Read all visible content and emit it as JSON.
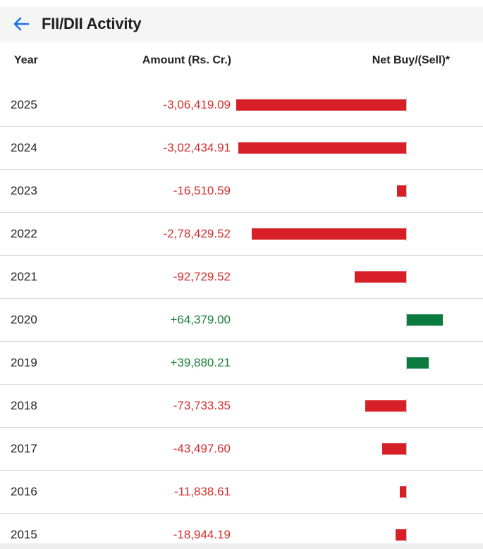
{
  "header": {
    "title": "FII/DII Activity",
    "back_icon": "arrow-left-icon",
    "accent": "#1a73e8"
  },
  "columns": {
    "year": "Year",
    "amount": "Amount (Rs. Cr.)",
    "net": "Net Buy/(Sell)*"
  },
  "colors": {
    "sell": "#d61f26",
    "buy": "#0b7a3e",
    "sell_text": "#d32f2f",
    "buy_text": "#1b7f3a"
  },
  "rows": [
    {
      "year": "2025",
      "amount": "-3,06,419.09",
      "value": -306419.09
    },
    {
      "year": "2024",
      "amount": "-3,02,434.91",
      "value": -302434.91
    },
    {
      "year": "2023",
      "amount": "-16,510.59",
      "value": -16510.59
    },
    {
      "year": "2022",
      "amount": "-2,78,429.52",
      "value": -278429.52
    },
    {
      "year": "2021",
      "amount": "-92,729.52",
      "value": -92729.52
    },
    {
      "year": "2020",
      "amount": "+64,379.00",
      "value": 64379.0
    },
    {
      "year": "2019",
      "amount": "+39,880.21",
      "value": 39880.21
    },
    {
      "year": "2018",
      "amount": "-73,733.35",
      "value": -73733.35
    },
    {
      "year": "2017",
      "amount": "-43,497.60",
      "value": -43497.6
    },
    {
      "year": "2016",
      "amount": "-11,838.61",
      "value": -11838.61
    },
    {
      "year": "2015",
      "amount": "-18,944.19",
      "value": -18944.19
    }
  ]
}
